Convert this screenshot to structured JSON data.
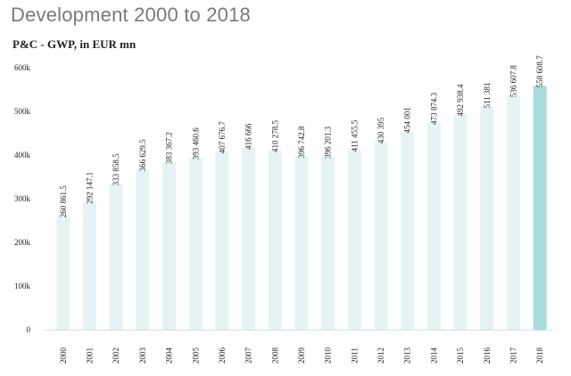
{
  "header": {
    "title": "Development 2000 to 2018"
  },
  "chart_data": {
    "type": "bar",
    "title": "P&C - GWP, in EUR mn",
    "xlabel": "",
    "ylabel": "",
    "ylim": [
      0,
      600000
    ],
    "yticks": [
      0,
      100000,
      200000,
      300000,
      400000,
      500000,
      600000
    ],
    "ytick_labels": [
      "0",
      "100k",
      "200k",
      "300k",
      "400k",
      "500k",
      "600k"
    ],
    "grid": false,
    "categories": [
      "2000",
      "2001",
      "2002",
      "2003",
      "2004",
      "2005",
      "2006",
      "2007",
      "2008",
      "2009",
      "2010",
      "2011",
      "2012",
      "2013",
      "2014",
      "2015",
      "2016",
      "2017",
      "2018"
    ],
    "values": [
      260861.5,
      292147.1,
      333858.5,
      366629.5,
      383367.2,
      393460.6,
      407676.7,
      416666,
      410278.5,
      396742.8,
      396201.3,
      411455.5,
      430395,
      454001,
      473874.3,
      492938.4,
      511381,
      536607.8,
      558608.7
    ],
    "value_labels": [
      "260 861.5",
      "292 147.1",
      "333 858.5",
      "366 629.5",
      "383 367.2",
      "393 460.6",
      "407 676.7",
      "416 666",
      "410 278.5",
      "396 742.8",
      "396 201.3",
      "411 455.5",
      "430 395",
      "454 001",
      "473 874.3",
      "492 938.4",
      "511 381",
      "536 607.8",
      "558 608.7"
    ],
    "highlight_category": "2018",
    "colors": {
      "bar": "#e6f3f4",
      "bar_highlight": "#a6dcdc",
      "axis": "#cfe3e8"
    }
  }
}
